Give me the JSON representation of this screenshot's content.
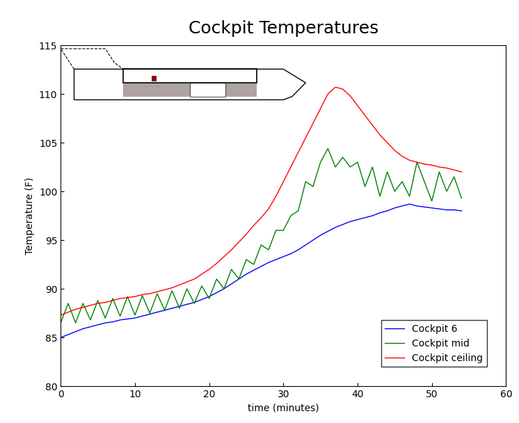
{
  "chart_data": {
    "type": "line",
    "title": "Cockpit Temperatures",
    "x_label": "time (minutes)",
    "y_label": "Temperature (F)",
    "x": [
      0,
      1,
      2,
      3,
      4,
      5,
      6,
      7,
      8,
      9,
      10,
      11,
      12,
      13,
      14,
      15,
      16,
      17,
      18,
      19,
      20,
      21,
      22,
      23,
      24,
      25,
      26,
      27,
      28,
      29,
      30,
      31,
      32,
      33,
      34,
      35,
      36,
      37,
      38,
      39,
      40,
      41,
      42,
      43,
      44,
      45,
      46,
      47,
      48,
      49,
      50,
      51,
      52,
      53,
      54
    ],
    "series": [
      {
        "name": "Cockpit 6",
        "color": "#0000ff",
        "values": [
          85,
          85.3,
          85.6,
          85.9,
          86.1,
          86.3,
          86.5,
          86.6,
          86.8,
          86.9,
          87,
          87.2,
          87.4,
          87.6,
          87.8,
          88,
          88.2,
          88.4,
          88.6,
          88.9,
          89.2,
          89.6,
          90,
          90.5,
          91,
          91.5,
          91.9,
          92.3,
          92.7,
          93,
          93.3,
          93.6,
          94,
          94.5,
          95,
          95.5,
          95.9,
          96.3,
          96.6,
          96.9,
          97.1,
          97.3,
          97.5,
          97.8,
          98,
          98.3,
          98.5,
          98.7,
          98.5,
          98.4,
          98.3,
          98.2,
          98.1,
          98.1,
          98
        ]
      },
      {
        "name": "Cockpit mid",
        "color": "#008000",
        "values": [
          86.5,
          88.5,
          86.5,
          88.5,
          86.8,
          88.8,
          87,
          89,
          87.2,
          89.2,
          87.3,
          89.3,
          87.5,
          89.5,
          87.8,
          89.8,
          88,
          90,
          88.5,
          90.3,
          89,
          91,
          90,
          92,
          91,
          93,
          92.5,
          94.5,
          94,
          96,
          96,
          97.5,
          98,
          101,
          100.5,
          103,
          104.4,
          102.5,
          103.5,
          102.5,
          103,
          100.5,
          102.5,
          99.5,
          102,
          100,
          101,
          99.5,
          103,
          101,
          99,
          102,
          100,
          101.5,
          99.3
        ]
      },
      {
        "name": "Cockpit ceiling",
        "color": "#ff0000",
        "values": [
          87.3,
          87.6,
          87.9,
          88.1,
          88.3,
          88.5,
          88.6,
          88.8,
          89,
          89.1,
          89.2,
          89.4,
          89.5,
          89.7,
          89.9,
          90.1,
          90.4,
          90.7,
          91,
          91.5,
          92,
          92.6,
          93.3,
          94,
          94.8,
          95.6,
          96.5,
          97.3,
          98.2,
          99.5,
          101,
          102.5,
          104,
          105.5,
          107,
          108.5,
          110,
          110.7,
          110.5,
          109.8,
          108.8,
          107.8,
          106.8,
          105.8,
          105,
          104.2,
          103.6,
          103.2,
          103,
          102.8,
          102.7,
          102.5,
          102.4,
          102.2,
          102
        ]
      }
    ],
    "xlim": [
      0,
      60
    ],
    "xticks": [
      0,
      10,
      20,
      30,
      40,
      50,
      60
    ],
    "ylim": [
      80,
      115
    ],
    "yticks": [
      80,
      85,
      90,
      95,
      100,
      105,
      110,
      115
    ],
    "grid": false,
    "legend": "lower right"
  }
}
